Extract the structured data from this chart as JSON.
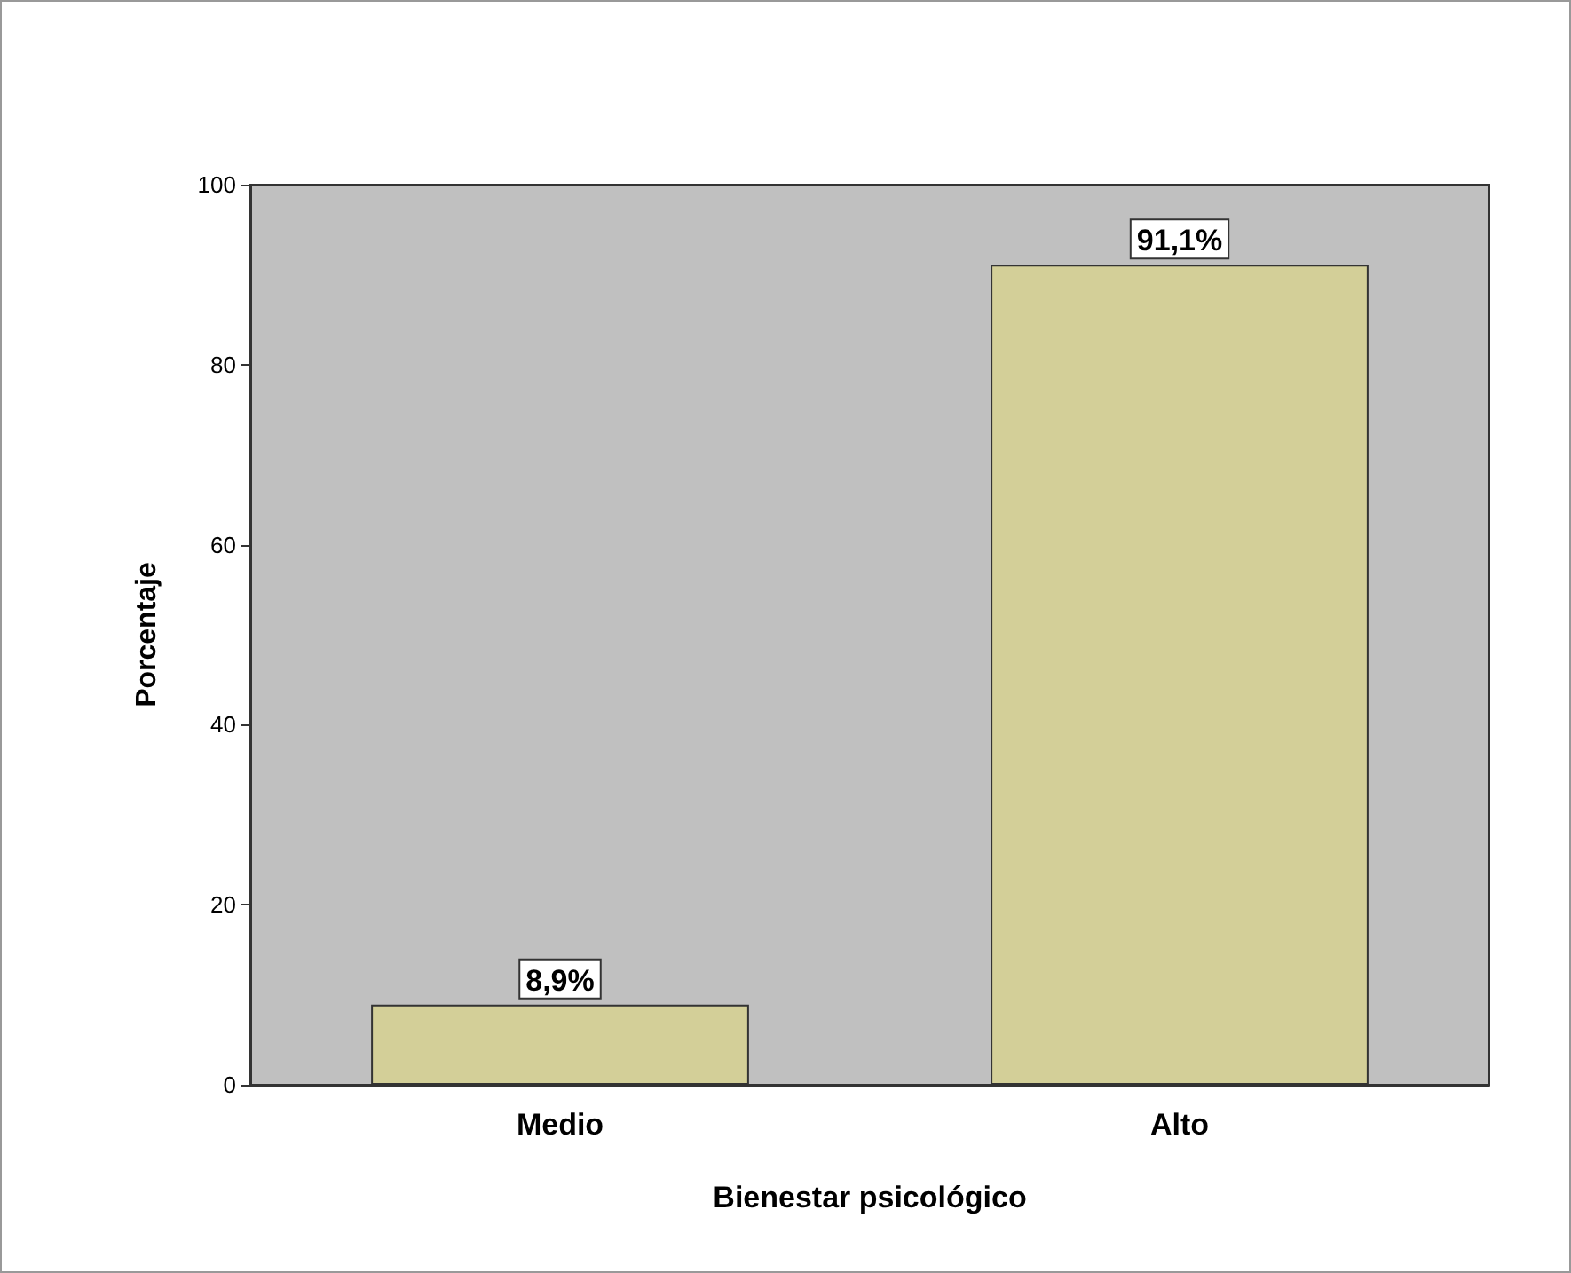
{
  "chart_data": {
    "type": "bar",
    "xlabel": "Bienestar psicológico",
    "ylabel": "Porcentaje",
    "categories": [
      "Medio",
      "Alto"
    ],
    "values": [
      8.9,
      91.1
    ],
    "value_labels": [
      "8,9%",
      "91,1%"
    ],
    "color": "#d3cf98",
    "ylim": [
      0,
      100
    ],
    "yticks": [
      0,
      20,
      40,
      60,
      80,
      100
    ],
    "grid": false
  }
}
